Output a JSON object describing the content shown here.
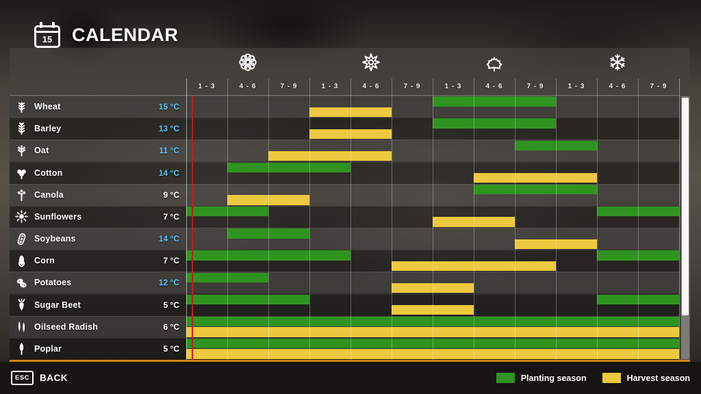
{
  "header": {
    "title": "CALENDAR",
    "calendar_icon_day": "15"
  },
  "footer": {
    "esc_key": "ESC",
    "back_label": "BACK"
  },
  "legend": [
    {
      "label": "Planting season",
      "color": "#2f941f"
    },
    {
      "label": "Harvest season",
      "color": "#ecc93e"
    }
  ],
  "chart_data": {
    "type": "gantt-calendar",
    "columns_total": 12,
    "seasons": [
      {
        "name": "spring",
        "icon": "spring-flower-icon",
        "periods": [
          "1 - 3",
          "4 - 6",
          "7 - 9"
        ]
      },
      {
        "name": "summer",
        "icon": "summer-sun-icon",
        "periods": [
          "1 - 3",
          "4 - 6",
          "7 - 9"
        ]
      },
      {
        "name": "autumn",
        "icon": "autumn-leaf-icon",
        "periods": [
          "1 - 3",
          "4 - 6",
          "7 - 9"
        ]
      },
      {
        "name": "winter",
        "icon": "winter-snowflake-icon",
        "periods": [
          "1 - 3",
          "4 - 6",
          "7 - 9"
        ]
      }
    ],
    "colors": {
      "planting": "#2f941f",
      "harvest": "#ecc93e",
      "temp_highlight": "#5ec5f2",
      "current_day_line": "#c11d1d"
    },
    "current_day_marker": {
      "position_periods": 0.13
    },
    "crops": [
      {
        "name": "Wheat",
        "icon": "wheat-icon",
        "temperature": "15 °C",
        "temp_highlighted": true,
        "planting": [
          [
            6,
            9
          ]
        ],
        "harvest": [
          [
            3,
            5
          ]
        ]
      },
      {
        "name": "Barley",
        "icon": "barley-icon",
        "temperature": "13 °C",
        "temp_highlighted": true,
        "planting": [
          [
            6,
            9
          ]
        ],
        "harvest": [
          [
            3,
            5
          ]
        ]
      },
      {
        "name": "Oat",
        "icon": "oat-icon",
        "temperature": "11 °C",
        "temp_highlighted": true,
        "planting": [
          [
            8,
            10
          ]
        ],
        "harvest": [
          [
            2,
            5
          ]
        ]
      },
      {
        "name": "Cotton",
        "icon": "cotton-icon",
        "temperature": "14 °C",
        "temp_highlighted": true,
        "planting": [
          [
            1,
            4
          ]
        ],
        "harvest": [
          [
            7,
            10
          ]
        ]
      },
      {
        "name": "Canola",
        "icon": "canola-icon",
        "temperature": "9 °C",
        "temp_highlighted": false,
        "planting": [
          [
            7,
            10
          ]
        ],
        "harvest": [
          [
            1,
            3
          ]
        ]
      },
      {
        "name": "Sunflowers",
        "icon": "sunflower-icon",
        "temperature": "7 °C",
        "temp_highlighted": false,
        "planting": [
          [
            0,
            2
          ],
          [
            10,
            12
          ]
        ],
        "harvest": [
          [
            6,
            8
          ]
        ]
      },
      {
        "name": "Soybeans",
        "icon": "soybeans-icon",
        "temperature": "14 °C",
        "temp_highlighted": true,
        "planting": [
          [
            1,
            3
          ]
        ],
        "harvest": [
          [
            8,
            10
          ]
        ]
      },
      {
        "name": "Corn",
        "icon": "corn-icon",
        "temperature": "7 °C",
        "temp_highlighted": false,
        "planting": [
          [
            0,
            4
          ],
          [
            10,
            12
          ]
        ],
        "harvest": [
          [
            5,
            9
          ]
        ]
      },
      {
        "name": "Potatoes",
        "icon": "potatoes-icon",
        "temperature": "12 °C",
        "temp_highlighted": true,
        "planting": [
          [
            0,
            2
          ]
        ],
        "harvest": [
          [
            5,
            7
          ]
        ]
      },
      {
        "name": "Sugar Beet",
        "icon": "sugar-beet-icon",
        "temperature": "5 °C",
        "temp_highlighted": false,
        "planting": [
          [
            0,
            3
          ],
          [
            10,
            12
          ]
        ],
        "harvest": [
          [
            5,
            7
          ]
        ]
      },
      {
        "name": "Oilseed Radish",
        "icon": "oilseed-radish-icon",
        "temperature": "6 °C",
        "temp_highlighted": false,
        "planting": [
          [
            0,
            12
          ]
        ],
        "harvest": [
          [
            0,
            12
          ]
        ]
      },
      {
        "name": "Poplar",
        "icon": "poplar-icon",
        "temperature": "5 °C",
        "temp_highlighted": false,
        "planting": [
          [
            0,
            12
          ]
        ],
        "harvest": [
          [
            0,
            12
          ]
        ]
      }
    ]
  }
}
